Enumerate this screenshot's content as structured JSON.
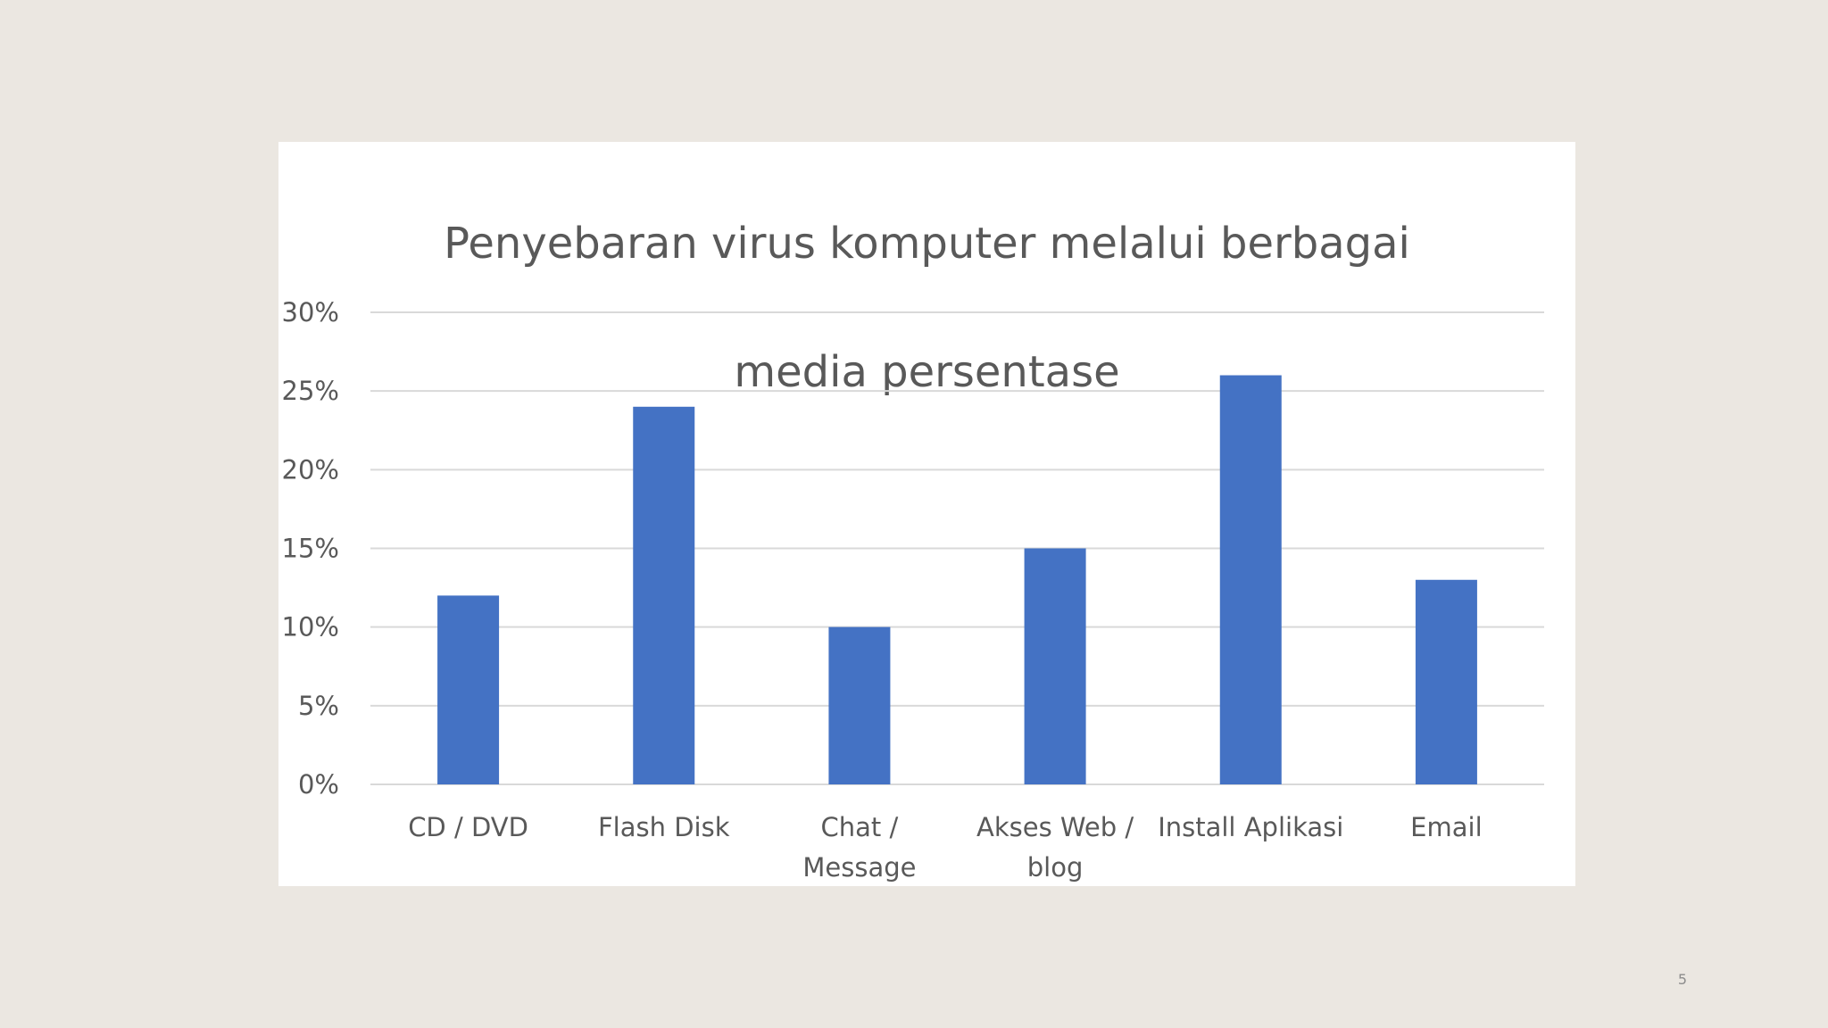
{
  "slide": {
    "page_number": "5",
    "background_color": "#ebe7e1"
  },
  "chart_data": {
    "type": "bar",
    "title_lines": [
      "Penyebaran virus komputer melalui berbagai",
      "media  persentase"
    ],
    "categories": [
      [
        "CD / DVD"
      ],
      [
        "Flash Disk"
      ],
      [
        "Chat /",
        "Message"
      ],
      [
        "Akses Web /",
        "blog"
      ],
      [
        "Install Aplikasi"
      ],
      [
        "Email"
      ]
    ],
    "values": [
      12,
      24,
      10,
      15,
      26,
      13
    ],
    "y_ticks": [
      "0%",
      "5%",
      "10%",
      "15%",
      "20%",
      "25%",
      "30%"
    ],
    "ylim": [
      0,
      30
    ],
    "grid": true,
    "legend": "none",
    "bar_color": "#4472c4",
    "grid_color": "#d9d9d9",
    "label_color": "#595959"
  }
}
